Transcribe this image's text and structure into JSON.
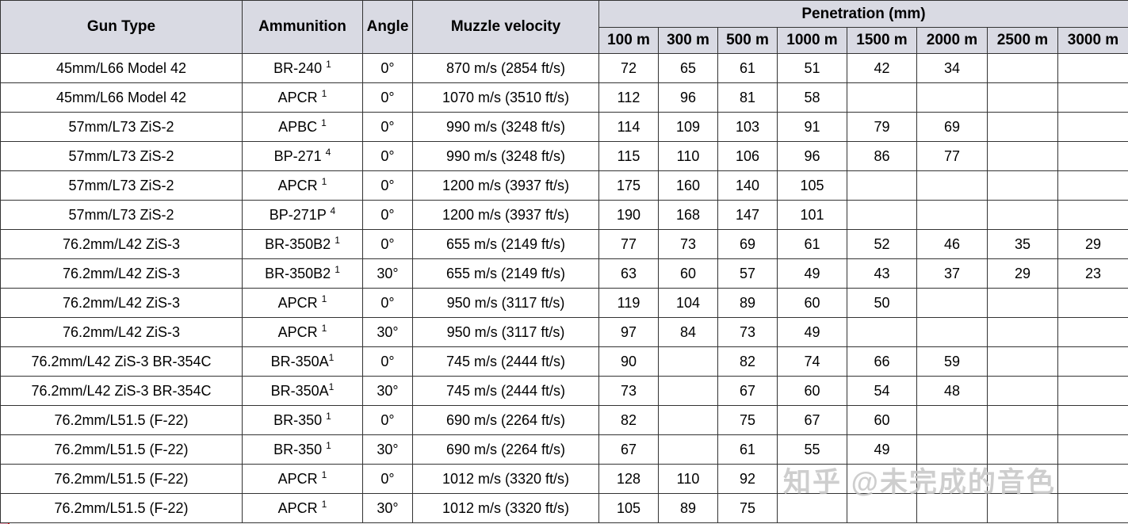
{
  "chart_data": {
    "type": "table",
    "group_header": "Penetration (mm)",
    "column_headers": {
      "gun_type": "Gun Type",
      "ammunition": "Ammunition",
      "angle": "Angle",
      "muzzle_velocity": "Muzzle velocity"
    },
    "distance_headers": [
      "100 m",
      "300 m",
      "500 m",
      "1000 m",
      "1500 m",
      "2000 m",
      "2500 m",
      "3000 m"
    ],
    "rows": [
      {
        "gun": "45mm/L66 Model 42",
        "ammo": "BR-240 ",
        "ammo_sup": "1",
        "angle": "0°",
        "velocity": "870 m/s (2854 ft/s)",
        "penetration": [
          "72",
          "65",
          "61",
          "51",
          "42",
          "34",
          "",
          ""
        ]
      },
      {
        "gun": "45mm/L66 Model 42",
        "ammo": "APCR ",
        "ammo_sup": "1",
        "angle": "0°",
        "velocity": "1070 m/s (3510 ft/s)",
        "penetration": [
          "112",
          "96",
          "81",
          "58",
          "",
          "",
          "",
          ""
        ]
      },
      {
        "gun": "57mm/L73 ZiS-2",
        "ammo": "APBC ",
        "ammo_sup": "1",
        "angle": "0°",
        "velocity": "990 m/s (3248 ft/s)",
        "penetration": [
          "114",
          "109",
          "103",
          "91",
          "79",
          "69",
          "",
          ""
        ]
      },
      {
        "gun": "57mm/L73 ZiS-2",
        "ammo": "BP-271 ",
        "ammo_sup": "4",
        "angle": "0°",
        "velocity": "990 m/s (3248 ft/s)",
        "penetration": [
          "115",
          "110",
          "106",
          "96",
          "86",
          "77",
          "",
          ""
        ]
      },
      {
        "gun": "57mm/L73 ZiS-2",
        "ammo": "APCR ",
        "ammo_sup": "1",
        "angle": "0°",
        "velocity": "1200 m/s (3937 ft/s)",
        "penetration": [
          "175",
          "160",
          "140",
          "105",
          "",
          "",
          "",
          ""
        ]
      },
      {
        "gun": "57mm/L73 ZiS-2",
        "ammo": "BP-271P ",
        "ammo_sup": "4",
        "angle": "0°",
        "velocity": "1200 m/s (3937 ft/s)",
        "penetration": [
          "190",
          "168",
          "147",
          "101",
          "",
          "",
          "",
          ""
        ]
      },
      {
        "gun": "76.2mm/L42 ZiS-3",
        "ammo": "BR-350B2 ",
        "ammo_sup": "1",
        "angle": "0°",
        "velocity": "655 m/s (2149 ft/s)",
        "penetration": [
          "77",
          "73",
          "69",
          "61",
          "52",
          "46",
          "35",
          "29"
        ]
      },
      {
        "gun": "76.2mm/L42 ZiS-3",
        "ammo": "BR-350B2 ",
        "ammo_sup": "1",
        "angle": "30°",
        "velocity": "655 m/s (2149 ft/s)",
        "penetration": [
          "63",
          "60",
          "57",
          "49",
          "43",
          "37",
          "29",
          "23"
        ]
      },
      {
        "gun": "76.2mm/L42 ZiS-3",
        "ammo": "APCR ",
        "ammo_sup": "1",
        "angle": "0°",
        "velocity": "950 m/s (3117 ft/s)",
        "penetration": [
          "119",
          "104",
          "89",
          "60",
          "50",
          "",
          "",
          ""
        ]
      },
      {
        "gun": "76.2mm/L42 ZiS-3",
        "ammo": "APCR ",
        "ammo_sup": "1",
        "angle": "30°",
        "velocity": "950 m/s (3117 ft/s)",
        "penetration": [
          "97",
          "84",
          "73",
          "49",
          "",
          "",
          "",
          ""
        ]
      },
      {
        "gun": "76.2mm/L42 ZiS-3 BR-354C",
        "ammo": "BR-350A",
        "ammo_sup": "1",
        "angle": "0°",
        "velocity": "745 m/s (2444 ft/s)",
        "penetration": [
          "90",
          "",
          "82",
          "74",
          "66",
          "59",
          "",
          ""
        ]
      },
      {
        "gun": "76.2mm/L42 ZiS-3 BR-354C",
        "ammo": "BR-350A",
        "ammo_sup": "1",
        "angle": "30°",
        "velocity": "745 m/s (2444 ft/s)",
        "penetration": [
          "73",
          "",
          "67",
          "60",
          "54",
          "48",
          "",
          ""
        ]
      },
      {
        "gun": "76.2mm/L51.5 (F-22)",
        "ammo": "BR-350 ",
        "ammo_sup": "1",
        "angle": "0°",
        "velocity": "690 m/s (2264 ft/s)",
        "penetration": [
          "82",
          "",
          "75",
          "67",
          "60",
          "",
          "",
          ""
        ]
      },
      {
        "gun": "76.2mm/L51.5 (F-22)",
        "ammo": "BR-350 ",
        "ammo_sup": "1",
        "angle": "30°",
        "velocity": "690 m/s (2264 ft/s)",
        "penetration": [
          "67",
          "",
          "61",
          "55",
          "49",
          "",
          "",
          ""
        ]
      },
      {
        "gun": "76.2mm/L51.5 (F-22)",
        "ammo": "APCR ",
        "ammo_sup": "1",
        "angle": "0°",
        "velocity": "1012 m/s (3320 ft/s)",
        "penetration": [
          "128",
          "110",
          "92",
          "",
          "",
          "",
          "",
          ""
        ]
      },
      {
        "gun": "76.2mm/L51.5 (F-22)",
        "ammo": "APCR ",
        "ammo_sup": "1",
        "angle": "30°",
        "velocity": "1012 m/s (3320 ft/s)",
        "penetration": [
          "105",
          "89",
          "75",
          "",
          "",
          "",
          "",
          ""
        ]
      }
    ]
  },
  "annotations": {
    "highlight_colors": {
      "red": "#e2231a",
      "yellow": "#ffd400",
      "green": "#27a243",
      "pink": "#f2a3b8"
    },
    "watermark": "知乎 @未完成的音色"
  }
}
